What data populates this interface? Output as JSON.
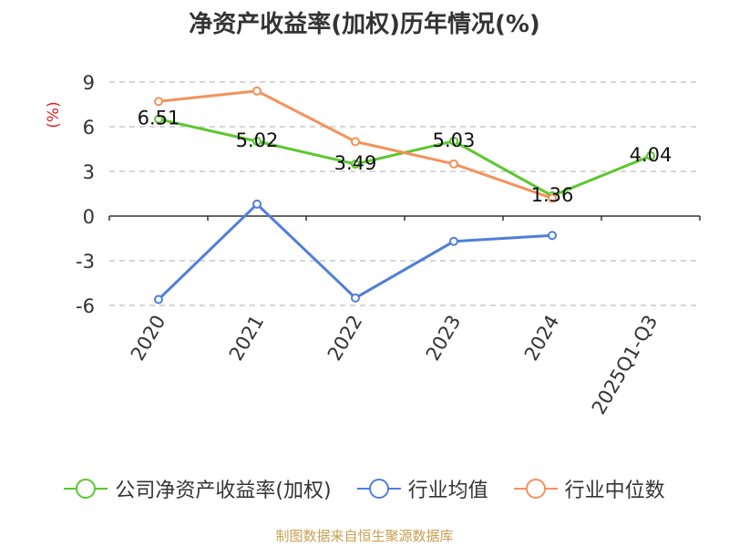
{
  "title": "净资产收益率(加权)历年情况(%)",
  "source": "制图数据来自恒生聚源数据库",
  "chart_data": {
    "type": "line",
    "title": "净资产收益率(加权)历年情况(%)",
    "ylabel": "(%)",
    "ylim": [
      -6,
      9
    ],
    "yticks": [
      9,
      6,
      3,
      0,
      -3,
      -6
    ],
    "categories": [
      "2020",
      "2021",
      "2022",
      "2023",
      "2024",
      "2025Q1-Q3"
    ],
    "grid": true,
    "legend_position": "bottom",
    "series": [
      {
        "name": "公司净资产收益率(加权)",
        "color": "#5cc72f",
        "values": [
          6.51,
          5.02,
          3.49,
          5.03,
          1.36,
          4.04
        ],
        "labels": [
          "6.51",
          "5.02",
          "3.49",
          "5.03",
          "1.36",
          "4.04"
        ]
      },
      {
        "name": "行业均值",
        "color": "#4f7fd9",
        "values": [
          -5.6,
          0.8,
          -5.5,
          -1.7,
          -1.3,
          null
        ]
      },
      {
        "name": "行业中位数",
        "color": "#f5915a",
        "values": [
          7.7,
          8.4,
          5.0,
          3.5,
          1.2,
          null
        ]
      }
    ]
  }
}
